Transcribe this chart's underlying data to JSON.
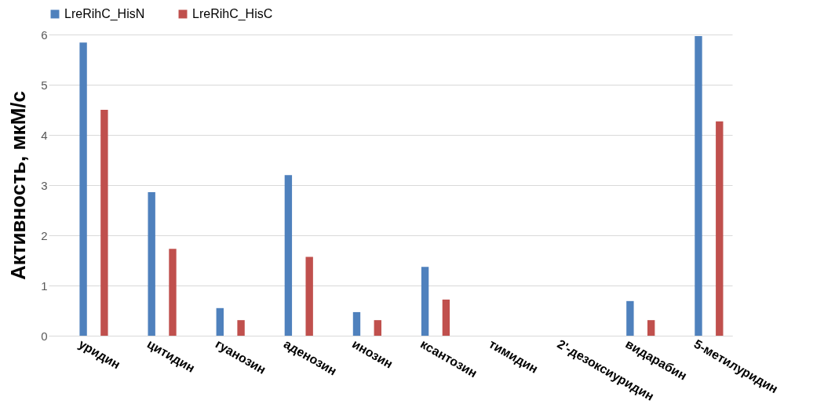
{
  "chart_data": {
    "type": "bar",
    "ylabel": "Активность, мкМ/с",
    "categories": [
      "уридин",
      "цитидин",
      "гуанозин",
      "аденозин",
      "инозин",
      "ксантозин",
      "тимидин",
      "2'-дезоксиуридин",
      "видарабин",
      "5-метилуридин"
    ],
    "series": [
      {
        "name": "LreRihC_HisN",
        "color": "#4f81bd",
        "values": [
          5.84,
          2.86,
          0.55,
          3.2,
          0.47,
          1.37,
          0,
          0,
          0.69,
          5.97
        ]
      },
      {
        "name": "LreRihC_HisC",
        "color": "#c0504d",
        "values": [
          4.5,
          1.73,
          0.31,
          1.57,
          0.31,
          0.72,
          0,
          0,
          0.31,
          4.27
        ]
      }
    ],
    "ylim": [
      0,
      6
    ],
    "yticks": [
      0,
      1,
      2,
      3,
      4,
      5,
      6
    ],
    "grid": "y",
    "legend": "top"
  }
}
